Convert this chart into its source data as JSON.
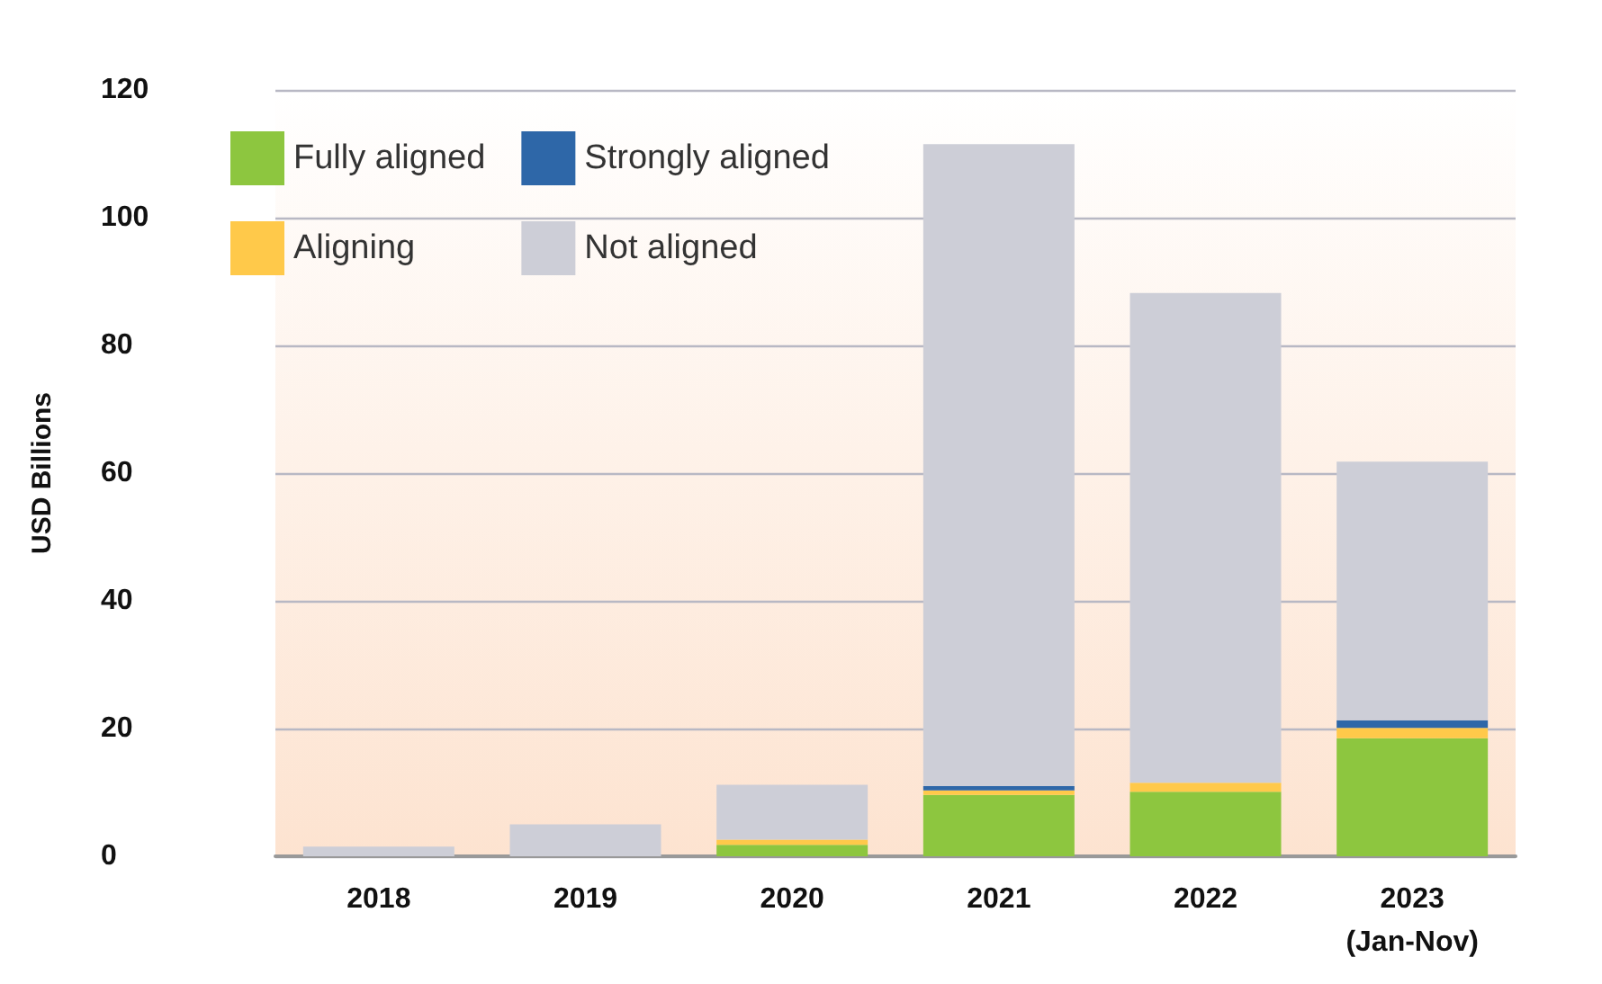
{
  "chart_data": {
    "type": "bar",
    "stacked": true,
    "ylabel": "USD Billions",
    "categories": [
      "2018",
      "2019",
      "2020",
      "2021",
      "2022",
      "2023\n(Jan-Nov)"
    ],
    "series": [
      {
        "name": "Fully aligned",
        "color": "#8dc63f",
        "values": [
          null,
          null,
          1.8,
          9.6,
          10.1,
          18.5
        ]
      },
      {
        "name": "Aligning",
        "color": "#ffc94a",
        "values": [
          null,
          null,
          0.8,
          0.7,
          1.4,
          1.6
        ]
      },
      {
        "name": "Strongly aligned",
        "color": "#2e67a8",
        "values": [
          null,
          null,
          null,
          0.7,
          null,
          1.2
        ]
      },
      {
        "name": "Not aligned",
        "color": "#cdced7",
        "values": [
          1.5,
          5.0,
          8.6,
          100.5,
          76.7,
          40.5
        ]
      }
    ],
    "ylim": [
      0,
      120
    ],
    "yticks": [
      0,
      20,
      40,
      60,
      80,
      100,
      120
    ],
    "grid": "y",
    "legend": "top left"
  }
}
